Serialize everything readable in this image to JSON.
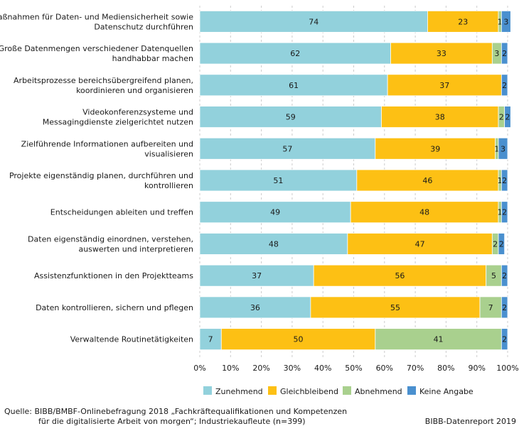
{
  "chart_data": {
    "type": "bar",
    "orientation": "horizontal",
    "stacked": true,
    "categories": [
      [
        "Maßnahmen für Daten- und Mediensicherheit sowie",
        "Datenschutz durchführen"
      ],
      [
        "Große Datenmengen verschiedener Datenquellen",
        "handhabbar machen"
      ],
      [
        "Arbeitsprozesse bereichsübergreifend planen,",
        "koordinieren und organisieren"
      ],
      [
        "Videokonferenzsysteme und",
        "Messagingdienste zielgerichtet nutzen"
      ],
      [
        "Zielführende Informationen aufbereiten und",
        "visualisieren"
      ],
      [
        "Projekte eigenständig planen, durchführen und",
        "kontrollieren"
      ],
      [
        "Entscheidungen ableiten und treffen"
      ],
      [
        "Daten eigenständig einordnen, verstehen,",
        "auswerten und interpretieren"
      ],
      [
        "Assistenzfunktionen in den Projektteams"
      ],
      [
        "Daten kontrollieren, sichern und pflegen"
      ],
      [
        "Verwaltende Routinetätigkeiten"
      ]
    ],
    "series": [
      {
        "name": "Zunehmend",
        "color": "#92d1dc",
        "values": [
          74,
          62,
          61,
          59,
          57,
          51,
          49,
          48,
          37,
          36,
          7
        ]
      },
      {
        "name": "Gleichbleibend",
        "color": "#fdc014",
        "values": [
          23,
          33,
          37,
          38,
          39,
          46,
          48,
          47,
          56,
          55,
          50
        ]
      },
      {
        "name": "Abnehmend",
        "color": "#a9d08e",
        "values": [
          1,
          3,
          0,
          2,
          1,
          1,
          1,
          2,
          5,
          7,
          41
        ]
      },
      {
        "name": "Keine Angabe",
        "color": "#4a90cf",
        "values": [
          3,
          2,
          2,
          2,
          3,
          2,
          2,
          2,
          2,
          2,
          2
        ]
      }
    ],
    "xlim": [
      0,
      100
    ],
    "xticks": [
      "0%",
      "10%",
      "20%",
      "30%",
      "40%",
      "50%",
      "60%",
      "70%",
      "80%",
      "90%",
      "100%"
    ],
    "grid": true,
    "legend": "bottom"
  },
  "footer": {
    "source_line1": "Quelle: BIBB/BMBF-Onlinebefragung 2018 „Fachkräftequalifikationen und Kompetenzen",
    "source_line2": "für die digitalisierte Arbeit von morgen“; Industriekaufleute (n=399)",
    "credit": "BIBB-Datenreport 2019"
  }
}
